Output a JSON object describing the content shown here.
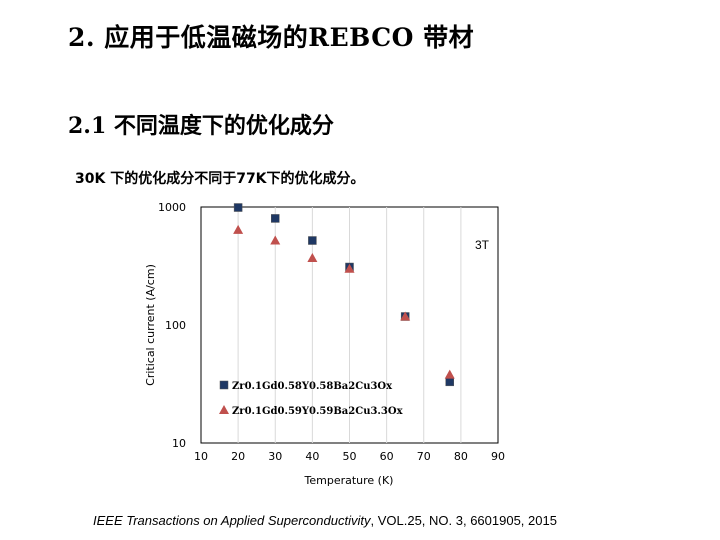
{
  "slide": {
    "title": "2. 应用于低温磁场的REBCO 带材",
    "subtitle": "2.1 不同温度下的优化成分",
    "description": "30K 下的优化成分不同于77K下的优化成分。"
  },
  "citation": {
    "journal": "IEEE Transactions on Applied Superconductivity",
    "details": ", VOL.25, NO. 3, 6601905, 2015"
  },
  "chart_data": {
    "type": "scatter",
    "xlabel": "Temperature (K)",
    "ylabel": "Critical current  (A/cm)",
    "xlim": [
      10,
      90
    ],
    "ylim": [
      10,
      1000
    ],
    "yscale": "log",
    "x_ticks": [
      "10",
      "20",
      "30",
      "40",
      "50",
      "60",
      "70",
      "80",
      "90"
    ],
    "y_ticks": [
      "10",
      "100",
      "1000"
    ],
    "grid": "vertical",
    "annotation": "3T",
    "legend_position": "bottom-left",
    "series": [
      {
        "name": "Zr0.1Gd0.58Y0.58Ba2Cu3Ox",
        "marker": "square",
        "color": "#1f3864",
        "points": [
          [
            20,
            990
          ],
          [
            30,
            800
          ],
          [
            40,
            520
          ],
          [
            50,
            310
          ],
          [
            65,
            118
          ],
          [
            77,
            33
          ]
        ]
      },
      {
        "name": "Zr0.1Gd0.59Y0.59Ba2Cu3.3Ox",
        "marker": "triangle",
        "color": "#c0504d",
        "points": [
          [
            20,
            640
          ],
          [
            30,
            520
          ],
          [
            40,
            370
          ],
          [
            50,
            300
          ],
          [
            65,
            118
          ],
          [
            77,
            38
          ]
        ]
      }
    ]
  }
}
